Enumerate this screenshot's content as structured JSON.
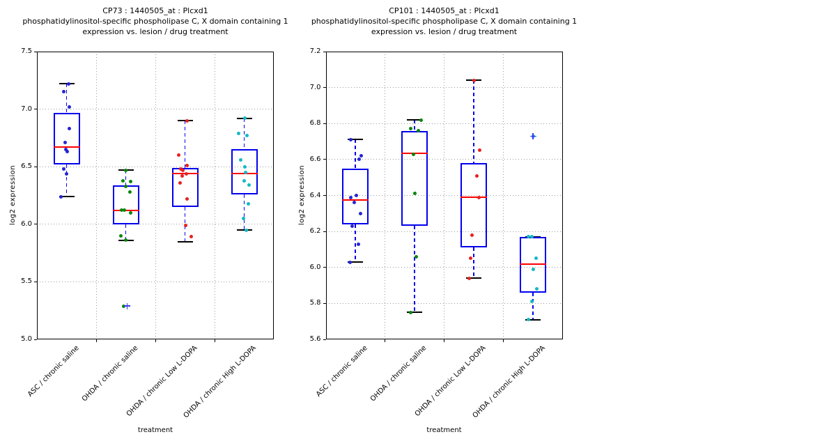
{
  "figure": {
    "bg": "#ffffff"
  },
  "styles": {
    "box_color": "#0000ee",
    "median_color": "#ff0000",
    "whisker_color": "#0000ee",
    "cap_color": "#000000",
    "flier_color": "#3a3af0",
    "grid_color": "#999999",
    "frame_color": "#000000",
    "text_color": "#000000"
  },
  "chart_data": [
    {
      "type": "box",
      "overlay": "scatter",
      "title": "CP73 : 1440505_at : Plcxd1",
      "subtitle": "phosphatidylinositol-specific phospholipase C, X domain containing 1",
      "subtitle2": "expression vs. lesion / drug treatment",
      "xlabel": "treatment",
      "ylabel": "log2 expression",
      "ylim": [
        5.0,
        7.5
      ],
      "yticks": [
        5.0,
        5.5,
        6.0,
        6.5,
        7.0,
        7.5
      ],
      "grid": true,
      "categories": [
        "ASC / chronic saline",
        "OHDA / chronic saline",
        "OHDA / chronic Low L-DOPA",
        "OHDA / chronic High L-DOPA"
      ],
      "groups": [
        {
          "category": "ASC / chronic saline",
          "point_color": "#2424d6",
          "box": {
            "q1": 6.52,
            "median": 6.67,
            "q3": 6.97,
            "whisker_low": 6.24,
            "whisker_high": 7.22
          },
          "points": [
            [
              7.22,
              3
            ],
            [
              7.15,
              -4
            ],
            [
              7.02,
              4
            ],
            [
              6.83,
              4
            ],
            [
              6.71,
              -2
            ],
            [
              6.65,
              -1
            ],
            [
              6.63,
              1
            ],
            [
              6.48,
              -4
            ],
            [
              6.44,
              0
            ],
            [
              6.24,
              -8
            ]
          ],
          "outliers": []
        },
        {
          "category": "OHDA / chronic saline",
          "point_color": "#0a860a",
          "box": {
            "q1": 6.0,
            "median": 6.12,
            "q3": 6.34,
            "whisker_low": 5.86,
            "whisker_high": 6.47
          },
          "points": [
            [
              6.47,
              0
            ],
            [
              6.38,
              -4
            ],
            [
              6.37,
              7
            ],
            [
              6.33,
              0
            ],
            [
              6.28,
              6
            ],
            [
              6.12,
              -6
            ],
            [
              6.12,
              -2
            ],
            [
              6.1,
              7
            ],
            [
              5.9,
              -7
            ],
            [
              5.86,
              0
            ],
            [
              5.29,
              -3
            ]
          ],
          "outliers": [
            [
              5.29,
              2
            ]
          ]
        },
        {
          "category": "OHDA / chronic Low L-DOPA",
          "point_color": "#e62222",
          "box": {
            "q1": 6.15,
            "median": 6.44,
            "q3": 6.49,
            "whisker_low": 5.85,
            "whisker_high": 6.9
          },
          "points": [
            [
              6.9,
              3
            ],
            [
              6.6,
              -9
            ],
            [
              6.51,
              3
            ],
            [
              6.48,
              -6
            ],
            [
              6.47,
              -3
            ],
            [
              6.44,
              2
            ],
            [
              6.42,
              -4
            ],
            [
              6.36,
              -7
            ],
            [
              6.22,
              3
            ],
            [
              5.99,
              1
            ],
            [
              5.89,
              9
            ]
          ],
          "outliers": []
        },
        {
          "category": "OHDA / chronic High L-DOPA",
          "point_color": "#14b9c3",
          "box": {
            "q1": 6.26,
            "median": 6.44,
            "q3": 6.65,
            "whisker_low": 5.95,
            "whisker_high": 6.92
          },
          "points": [
            [
              6.92,
              1
            ],
            [
              6.79,
              -8
            ],
            [
              6.77,
              4
            ],
            [
              6.56,
              -5
            ],
            [
              6.5,
              1
            ],
            [
              6.45,
              2
            ],
            [
              6.38,
              0
            ],
            [
              6.34,
              7
            ],
            [
              6.18,
              6
            ],
            [
              6.05,
              -1
            ],
            [
              5.95,
              3
            ]
          ],
          "outliers": []
        }
      ]
    },
    {
      "type": "box",
      "overlay": "scatter",
      "title": "CP101 : 1440505_at : Plcxd1",
      "subtitle": "phosphatidylinositol-specific phospholipase C, X domain containing 1",
      "subtitle2": "expression vs. lesion / drug treatment",
      "xlabel": "treatment",
      "ylabel": "log2 expression",
      "ylim": [
        5.6,
        7.2
      ],
      "yticks": [
        5.6,
        5.8,
        6.0,
        6.2,
        6.4,
        6.6,
        6.8,
        7.0,
        7.2
      ],
      "grid": true,
      "categories": [
        "ASC / chronic saline",
        "OHDA / chronic saline",
        "OHDA / chronic Low L-DOPA",
        "OHDA / chronic High L-DOPA"
      ],
      "groups": [
        {
          "category": "ASC / chronic saline",
          "point_color": "#2424d6",
          "box": {
            "q1": 6.24,
            "median": 6.375,
            "q3": 6.55,
            "whisker_low": 6.03,
            "whisker_high": 6.71
          },
          "points": [
            [
              6.71,
              -7
            ],
            [
              6.62,
              8
            ],
            [
              6.6,
              5
            ],
            [
              6.4,
              1
            ],
            [
              6.39,
              -7
            ],
            [
              6.36,
              -2
            ],
            [
              6.3,
              7
            ],
            [
              6.23,
              -5
            ],
            [
              6.13,
              4
            ],
            [
              6.03,
              -8
            ]
          ],
          "outliers": []
        },
        {
          "category": "OHDA / chronic saline",
          "point_color": "#0a860a",
          "box": {
            "q1": 6.23,
            "median": 6.635,
            "q3": 6.76,
            "whisker_low": 5.75,
            "whisker_high": 6.82
          },
          "points": [
            [
              6.82,
              9
            ],
            [
              6.77,
              -6
            ],
            [
              6.76,
              5
            ],
            [
              6.63,
              -2
            ],
            [
              6.41,
              0
            ],
            [
              6.06,
              2
            ],
            [
              5.75,
              -6
            ]
          ],
          "outliers": []
        },
        {
          "category": "OHDA / chronic Low L-DOPA",
          "point_color": "#e62222",
          "box": {
            "q1": 6.11,
            "median": 6.39,
            "q3": 6.58,
            "whisker_low": 5.94,
            "whisker_high": 7.04
          },
          "points": [
            [
              7.04,
              0
            ],
            [
              6.65,
              8
            ],
            [
              6.51,
              4
            ],
            [
              6.39,
              7
            ],
            [
              6.18,
              -3
            ],
            [
              6.05,
              -5
            ],
            [
              5.94,
              -7
            ]
          ],
          "outliers": []
        },
        {
          "category": "OHDA / chronic High L-DOPA",
          "point_color": "#14b9c3",
          "box": {
            "q1": 5.86,
            "median": 6.02,
            "q3": 6.17,
            "whisker_low": 5.71,
            "whisker_high": 6.17
          },
          "points": [
            [
              6.73,
              0
            ],
            [
              6.17,
              -7
            ],
            [
              6.17,
              -2
            ],
            [
              6.05,
              4
            ],
            [
              5.99,
              0
            ],
            [
              5.88,
              5
            ],
            [
              5.81,
              -2
            ],
            [
              5.71,
              -7
            ]
          ],
          "outliers": [
            [
              6.73,
              0
            ]
          ]
        }
      ]
    }
  ]
}
